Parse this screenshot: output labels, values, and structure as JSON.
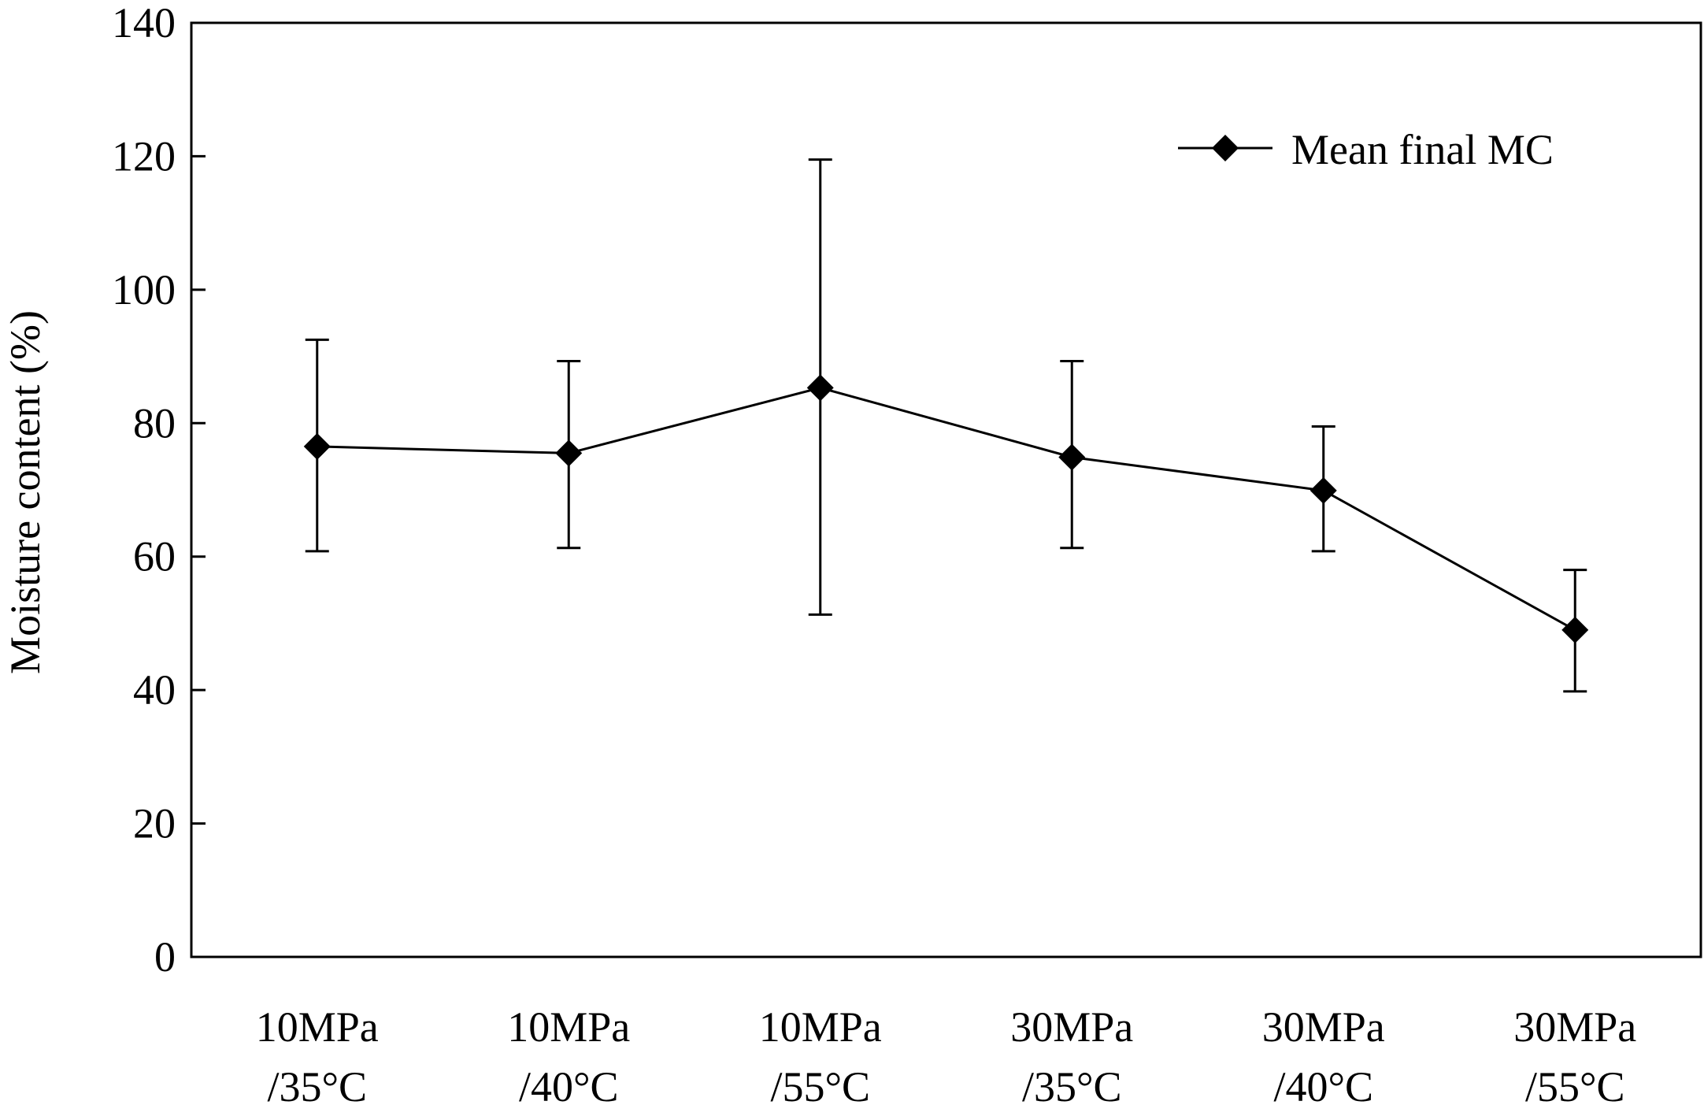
{
  "chart_data": {
    "type": "line",
    "ylabel": "Moisture content (%)",
    "xlabel": "",
    "ylim": [
      0,
      140
    ],
    "yticks": [
      0,
      20,
      40,
      60,
      80,
      100,
      120,
      140
    ],
    "categories": [
      [
        "10MPa",
        "/35°C"
      ],
      [
        "10MPa",
        "/40°C"
      ],
      [
        "10MPa",
        "/55°C"
      ],
      [
        "30MPa",
        "/35°C"
      ],
      [
        "30MPa",
        "/40°C"
      ],
      [
        "30MPa",
        "/55°C"
      ]
    ],
    "series": [
      {
        "name": "Mean final MC",
        "marker": "diamond",
        "color": "#000000",
        "values": [
          76.5,
          75.5,
          85.3,
          74.9,
          69.9,
          49.0
        ],
        "error_upper": [
          92.5,
          89.3,
          119.5,
          89.3,
          79.5,
          58.0
        ],
        "error_lower": [
          60.8,
          61.3,
          51.3,
          61.3,
          60.8,
          39.8
        ]
      }
    ],
    "legend": {
      "position": "top-right",
      "entries": [
        "Mean final MC"
      ]
    },
    "grid": false
  }
}
